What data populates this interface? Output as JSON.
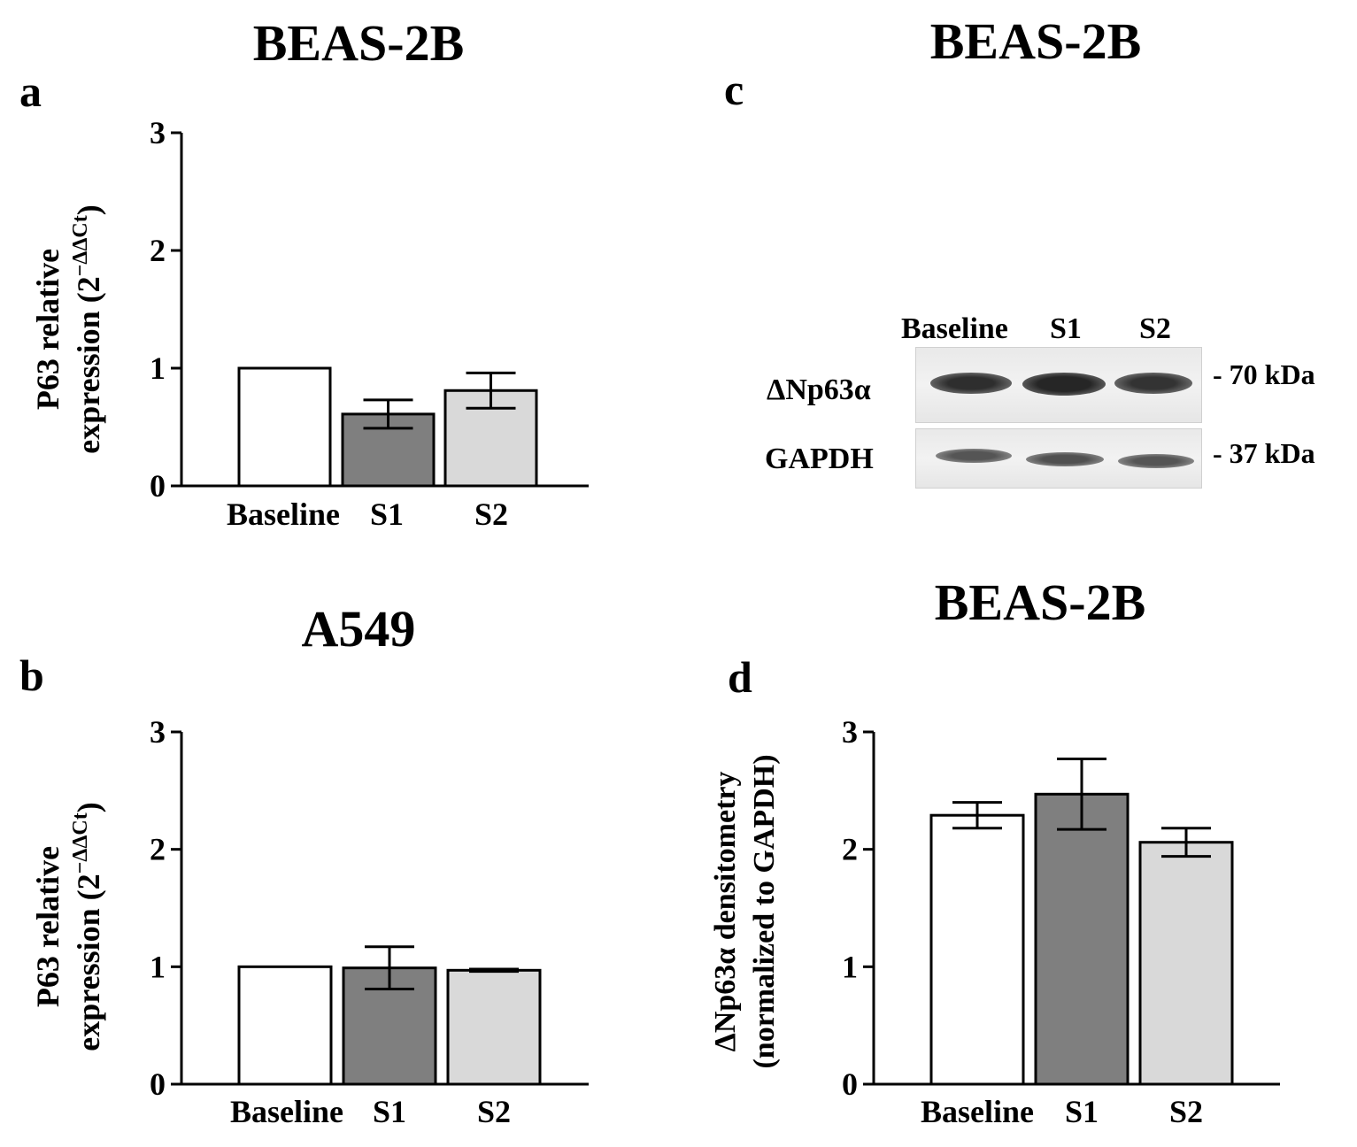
{
  "panels": {
    "a": {
      "letter": "a",
      "title": "BEAS-2B"
    },
    "b": {
      "letter": "b",
      "title": "A549"
    },
    "c": {
      "letter": "c",
      "title": "BEAS-2B"
    },
    "d": {
      "letter": "d",
      "title": "BEAS-2B"
    }
  },
  "blot": {
    "lanes": [
      "Baseline",
      "S1",
      "S2"
    ],
    "rows": [
      {
        "label": "ΔNp63α",
        "kda": "- 70 kDa"
      },
      {
        "label": "GAPDH",
        "kda": "- 37 kDa"
      }
    ]
  },
  "colors": {
    "Baseline": "#ffffff",
    "S1": "#7f7f7f",
    "S2": "#d9d9d9",
    "axis": "#000000"
  },
  "chart_data": [
    {
      "id": "a",
      "type": "bar",
      "categories": [
        "Baseline",
        "S1",
        "S2"
      ],
      "values": [
        1.0,
        0.61,
        0.81
      ],
      "errors": [
        0,
        0.12,
        0.15
      ],
      "ylabel": [
        "P63 relative",
        "expression (2",
        "−ΔΔCt",
        ")"
      ],
      "ylim": [
        0,
        3
      ],
      "yticks": [
        0,
        1,
        2,
        3
      ]
    },
    {
      "id": "b",
      "type": "bar",
      "categories": [
        "Baseline",
        "S1",
        "S2"
      ],
      "values": [
        1.0,
        0.99,
        0.97
      ],
      "errors": [
        0,
        0.18,
        0.01
      ],
      "ylabel": [
        "P63 relative",
        "expression (2",
        "−ΔΔCt",
        ")"
      ],
      "ylim": [
        0,
        3
      ],
      "yticks": [
        0,
        1,
        2,
        3
      ]
    },
    {
      "id": "d",
      "type": "bar",
      "categories": [
        "Baseline",
        "S1",
        "S2"
      ],
      "values": [
        2.29,
        2.47,
        2.06
      ],
      "errors": [
        0.11,
        0.3,
        0.12
      ],
      "ylabel": [
        "ΔNp63α densitometry",
        "(normalized to GAPDH)"
      ],
      "ylim": [
        0,
        3
      ],
      "yticks": [
        0,
        1,
        2,
        3
      ]
    }
  ]
}
